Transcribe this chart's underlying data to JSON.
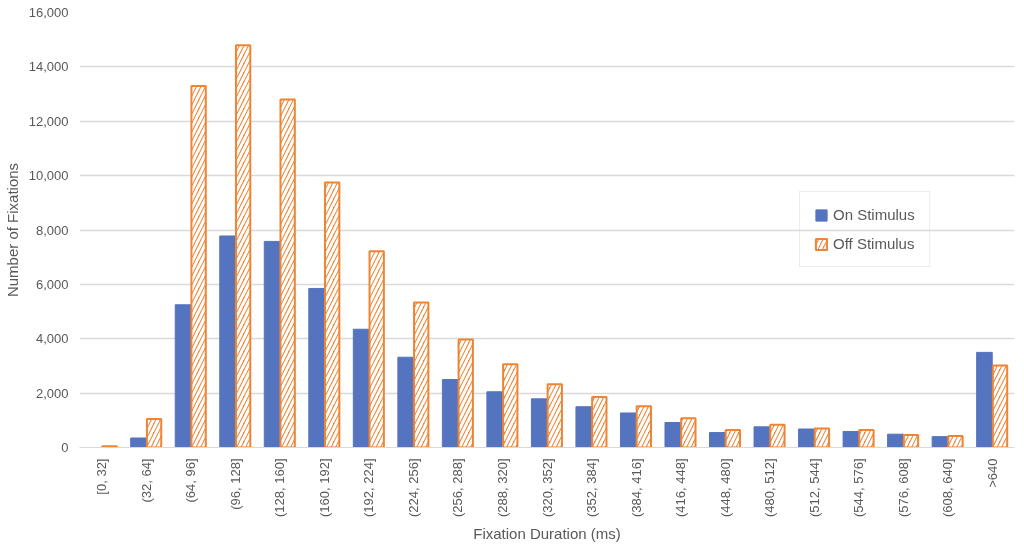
{
  "chart_data": {
    "type": "bar",
    "xlabel": "Fixation Duration (ms)",
    "ylabel": "Number of Fixations",
    "categories": [
      "[0, 32]",
      "(32, 64]",
      "(64, 96]",
      "(96, 128]",
      "(128, 160]",
      "(160, 192]",
      "(192, 224]",
      "(224, 256]",
      "(256, 288]",
      "(288, 320]",
      "(320, 352]",
      "(352, 384]",
      "(384, 416]",
      "(416, 448]",
      "(448, 480]",
      "(480, 512]",
      "(512, 544]",
      "(544, 576]",
      "(576, 608]",
      "(608, 640]",
      ">640"
    ],
    "series": [
      {
        "name": "On Stimulus",
        "color": "#5574bf",
        "values": [
          0,
          350,
          5250,
          7780,
          7580,
          5850,
          4350,
          3320,
          2500,
          2050,
          1790,
          1500,
          1270,
          920,
          550,
          760,
          680,
          590,
          490,
          400,
          3500
        ]
      },
      {
        "name": "Off Stimulus",
        "color": "#ef8432",
        "values": [
          50,
          1050,
          13300,
          14800,
          12800,
          9750,
          7220,
          5330,
          3970,
          3060,
          2330,
          1860,
          1520,
          1080,
          640,
          840,
          700,
          640,
          460,
          420,
          3020
        ]
      }
    ],
    "ylim": [
      0,
      16000
    ],
    "yticks": [
      {
        "value": 0,
        "label": "0"
      },
      {
        "value": 2000,
        "label": "2,000"
      },
      {
        "value": 4000,
        "label": "4,000"
      },
      {
        "value": 6000,
        "label": "6,000"
      },
      {
        "value": 8000,
        "label": "8,000"
      },
      {
        "value": 10000,
        "label": "10,000"
      },
      {
        "value": 12000,
        "label": "12,000"
      },
      {
        "value": 14000,
        "label": "14,000"
      },
      {
        "value": 16000,
        "label": "16,000"
      }
    ],
    "grid": "y",
    "legend": "right"
  }
}
